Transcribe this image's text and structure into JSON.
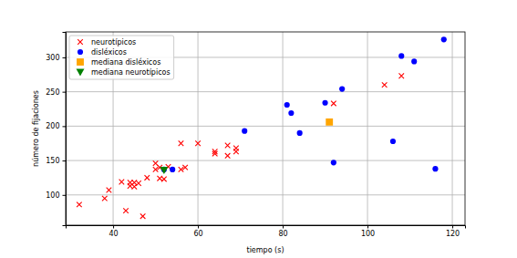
{
  "chart_data": {
    "type": "scatter",
    "x_label": "tiempo (s)",
    "y_label": "número de fijaciones",
    "xlim": [
      28.8,
      123
    ],
    "ylim": [
      56,
      337
    ],
    "xticks": [
      40,
      60,
      80,
      100,
      120
    ],
    "yticks": [
      100,
      150,
      200,
      250,
      300
    ],
    "grid": true,
    "legend": "upper left",
    "series": [
      {
        "name": "neurotípicos",
        "color": "#ff0000",
        "marker": "x",
        "x": [
          32,
          38,
          39,
          42,
          43,
          44,
          44,
          45,
          45,
          46,
          47,
          48,
          50,
          50,
          51,
          52,
          51,
          53,
          56,
          56,
          57,
          60,
          64,
          64,
          67,
          67,
          69,
          69,
          92,
          104,
          108
        ],
        "values": [
          86,
          95,
          107,
          119,
          77,
          113,
          118,
          112,
          118,
          117,
          69,
          125,
          137,
          146,
          124,
          123,
          140,
          141,
          137,
          175,
          140,
          175,
          160,
          163,
          157,
          172,
          168,
          163,
          233,
          260,
          273
        ]
      },
      {
        "name": "disléxicos",
        "color": "#0000ff",
        "marker": "o",
        "x": [
          52,
          54,
          71,
          81,
          82,
          84,
          90,
          92,
          94,
          106,
          108,
          111,
          116,
          118
        ],
        "values": [
          137,
          137,
          193,
          231,
          219,
          190,
          234,
          147,
          254,
          178,
          302,
          294,
          138,
          326
        ]
      },
      {
        "name": "mediana disléxicos",
        "color": "#ffa500",
        "marker": "s",
        "x": [
          91
        ],
        "values": [
          206
        ]
      },
      {
        "name": "mediana neurotípicos",
        "color": "#008000",
        "marker": "v",
        "x": [
          52
        ],
        "values": [
          136
        ]
      }
    ]
  }
}
